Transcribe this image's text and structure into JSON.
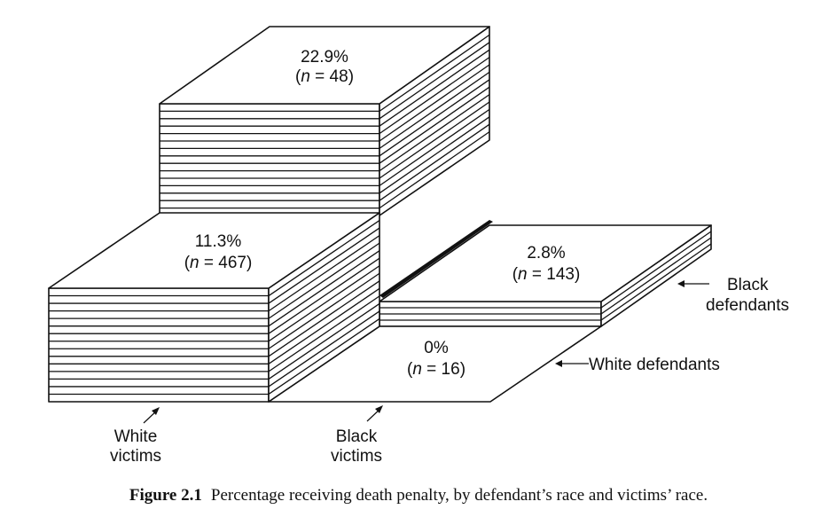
{
  "chart_data": {
    "type": "bar",
    "subtype": "3d-stacked-blocks",
    "categories": [
      "White victims",
      "Black victims"
    ],
    "series": [
      {
        "name": "White defendants",
        "values": [
          11.3,
          0
        ],
        "n": [
          467,
          16
        ]
      },
      {
        "name": "Black defendants",
        "values": [
          22.9,
          2.8
        ],
        "n": [
          48,
          143
        ]
      }
    ],
    "value_labels": {
      "white_def_white_vic": "11.3%",
      "white_def_black_vic": "0%",
      "black_def_white_vic": "22.9%",
      "black_def_black_vic": "2.8%"
    },
    "n_values": {
      "white_def_white_vic": "467",
      "white_def_black_vic": "16",
      "black_def_white_vic": "48",
      "black_def_black_vic": "143"
    },
    "n_prefix": "n",
    "axis_labels": {
      "white_victims": [
        "White",
        "victims"
      ],
      "black_victims": [
        "Black",
        "victims"
      ],
      "white_defendants": "White defendants",
      "black_defendants": [
        "Black",
        "defendants"
      ]
    }
  },
  "caption": {
    "figure_number": "Figure 2.1",
    "text": "Percentage receiving death penalty, by defendant’s race and victims’ race."
  }
}
